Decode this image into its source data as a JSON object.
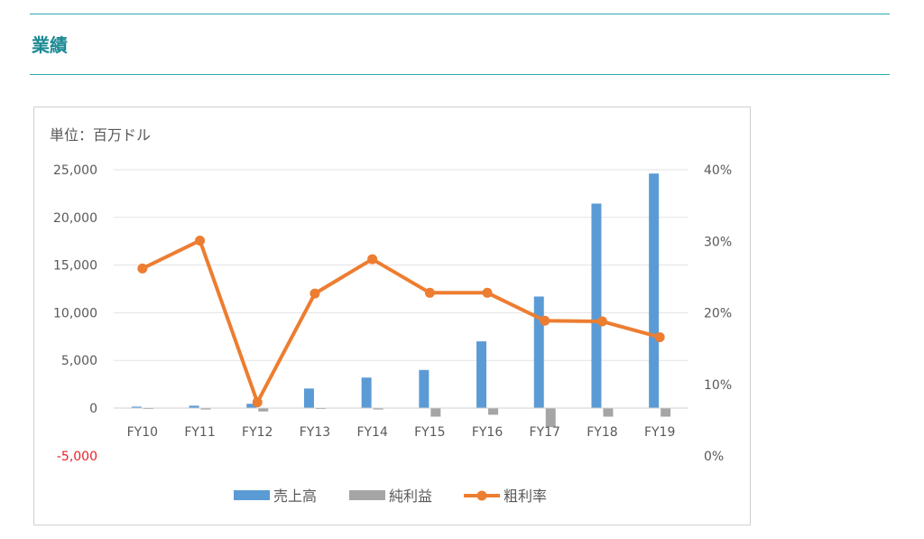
{
  "header": {
    "title": "業績"
  },
  "chart_data": {
    "type": "bar",
    "unit_label": "単位：百万ドル",
    "categories": [
      "FY10",
      "FY11",
      "FY12",
      "FY13",
      "FY14",
      "FY15",
      "FY16",
      "FY17",
      "FY18",
      "FY19"
    ],
    "series": [
      {
        "name": "売上高",
        "type": "bar",
        "axis": "left",
        "color": "#5b9bd5",
        "values": [
          150,
          250,
          450,
          2050,
          3200,
          4000,
          7000,
          11700,
          21450,
          24600
        ]
      },
      {
        "name": "純利益",
        "type": "bar",
        "axis": "left",
        "color": "#a5a5a5",
        "values": [
          -30,
          -150,
          -350,
          -30,
          -150,
          -900,
          -700,
          -2000,
          -900,
          -900
        ]
      },
      {
        "name": "粗利率",
        "type": "line",
        "axis": "right",
        "color": "#ed7d31",
        "values": [
          26.2,
          30.1,
          7.5,
          22.7,
          27.5,
          22.8,
          22.8,
          18.9,
          18.8,
          16.6
        ]
      }
    ],
    "y_left": {
      "min": -5000,
      "max": 25000,
      "ticks": [
        "25,000",
        "20,000",
        "15,000",
        "10,000",
        "5,000",
        "0",
        "-5,000"
      ],
      "tick_values": [
        25000,
        20000,
        15000,
        10000,
        5000,
        0,
        -5000
      ],
      "negative_color": "#e8202a"
    },
    "y_right": {
      "min": 0,
      "max": 40,
      "ticks": [
        "40%",
        "30%",
        "20%",
        "10%",
        "0%"
      ],
      "tick_values": [
        40,
        30,
        20,
        10,
        0
      ]
    },
    "grid": true,
    "legend": "bottom"
  }
}
